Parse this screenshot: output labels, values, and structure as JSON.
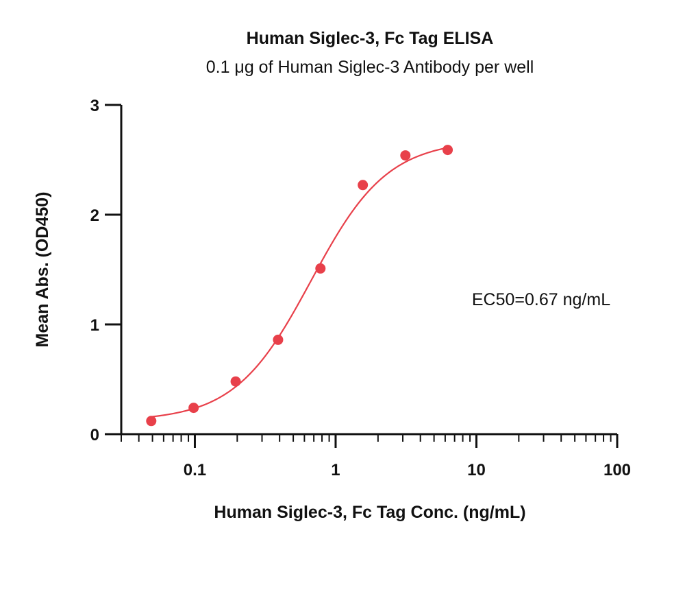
{
  "chart_data": {
    "type": "scatter",
    "title": "Human Siglec-3, Fc Tag ELISA",
    "subtitle": "0.1 μg of Human Siglec-3 Antibody per well",
    "xlabel": "Human Siglec-3, Fc Tag Conc. (ng/mL)",
    "ylabel": "Mean Abs. (OD450)",
    "x_scale": "log",
    "xlim": [
      0.03,
      100
    ],
    "ylim": [
      0,
      3
    ],
    "x_ticks": [
      0.1,
      1,
      10,
      100
    ],
    "x_tick_labels": [
      "0.1",
      "1",
      "10",
      "100"
    ],
    "y_ticks": [
      0,
      1,
      2,
      3
    ],
    "y_tick_labels": [
      "0",
      "1",
      "2",
      "3"
    ],
    "grid": false,
    "annotation": "EC50=0.67 ng/mL",
    "series": [
      {
        "x": [
          0.049,
          0.098,
          0.195,
          0.39,
          0.78,
          1.56,
          3.13,
          6.25
        ],
        "y": [
          0.12,
          0.24,
          0.48,
          0.86,
          1.51,
          2.27,
          2.54,
          2.59
        ],
        "color": "#e8404a",
        "fit": {
          "type": "four-parameter-logistic",
          "bottom": 0.12,
          "top": 2.68,
          "ec50": 0.67,
          "hill": 1.6,
          "x_range": [
            0.049,
            6.25
          ]
        }
      }
    ]
  }
}
